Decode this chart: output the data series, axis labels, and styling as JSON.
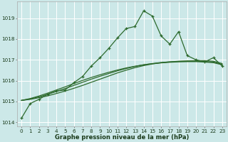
{
  "xlabel": "Graphe pression niveau de la mer (hPa)",
  "bg_color": "#cce8e8",
  "grid_color": "#ffffff",
  "line_color": "#2d6a2d",
  "ylim": [
    1013.8,
    1019.8
  ],
  "yticks": [
    1014,
    1015,
    1016,
    1017,
    1018,
    1019
  ],
  "xlim": [
    -0.5,
    23.5
  ],
  "xticks": [
    0,
    1,
    2,
    3,
    4,
    5,
    6,
    7,
    8,
    9,
    10,
    11,
    12,
    13,
    14,
    15,
    16,
    17,
    18,
    19,
    20,
    21,
    22,
    23
  ],
  "series_main": [
    1014.2,
    1014.9,
    1015.1,
    1015.35,
    1015.5,
    1015.55,
    1015.9,
    1016.2,
    1016.7,
    1017.1,
    1017.55,
    1018.05,
    1018.5,
    1018.6,
    1019.35,
    1019.1,
    1018.15,
    1017.75,
    1018.35,
    1017.2,
    1017.0,
    1016.9,
    1017.1,
    1016.7
  ],
  "series_smooth1": [
    1015.05,
    1015.1,
    1015.18,
    1015.27,
    1015.38,
    1015.5,
    1015.63,
    1015.77,
    1015.92,
    1016.07,
    1016.22,
    1016.37,
    1016.5,
    1016.62,
    1016.72,
    1016.8,
    1016.86,
    1016.9,
    1016.93,
    1016.95,
    1016.96,
    1016.96,
    1016.93,
    1016.82
  ],
  "series_smooth2": [
    1015.05,
    1015.12,
    1015.22,
    1015.34,
    1015.48,
    1015.62,
    1015.77,
    1015.92,
    1016.07,
    1016.21,
    1016.34,
    1016.47,
    1016.58,
    1016.68,
    1016.76,
    1016.82,
    1016.87,
    1016.9,
    1016.92,
    1016.93,
    1016.93,
    1016.92,
    1016.89,
    1016.78
  ],
  "series_smooth3": [
    1015.05,
    1015.14,
    1015.26,
    1015.4,
    1015.55,
    1015.7,
    1015.86,
    1016.01,
    1016.15,
    1016.28,
    1016.4,
    1016.51,
    1016.61,
    1016.69,
    1016.76,
    1016.81,
    1016.85,
    1016.88,
    1016.9,
    1016.91,
    1016.91,
    1016.89,
    1016.86,
    1016.76
  ],
  "xlabel_fontsize": 6.0,
  "tick_fontsize": 5.2
}
